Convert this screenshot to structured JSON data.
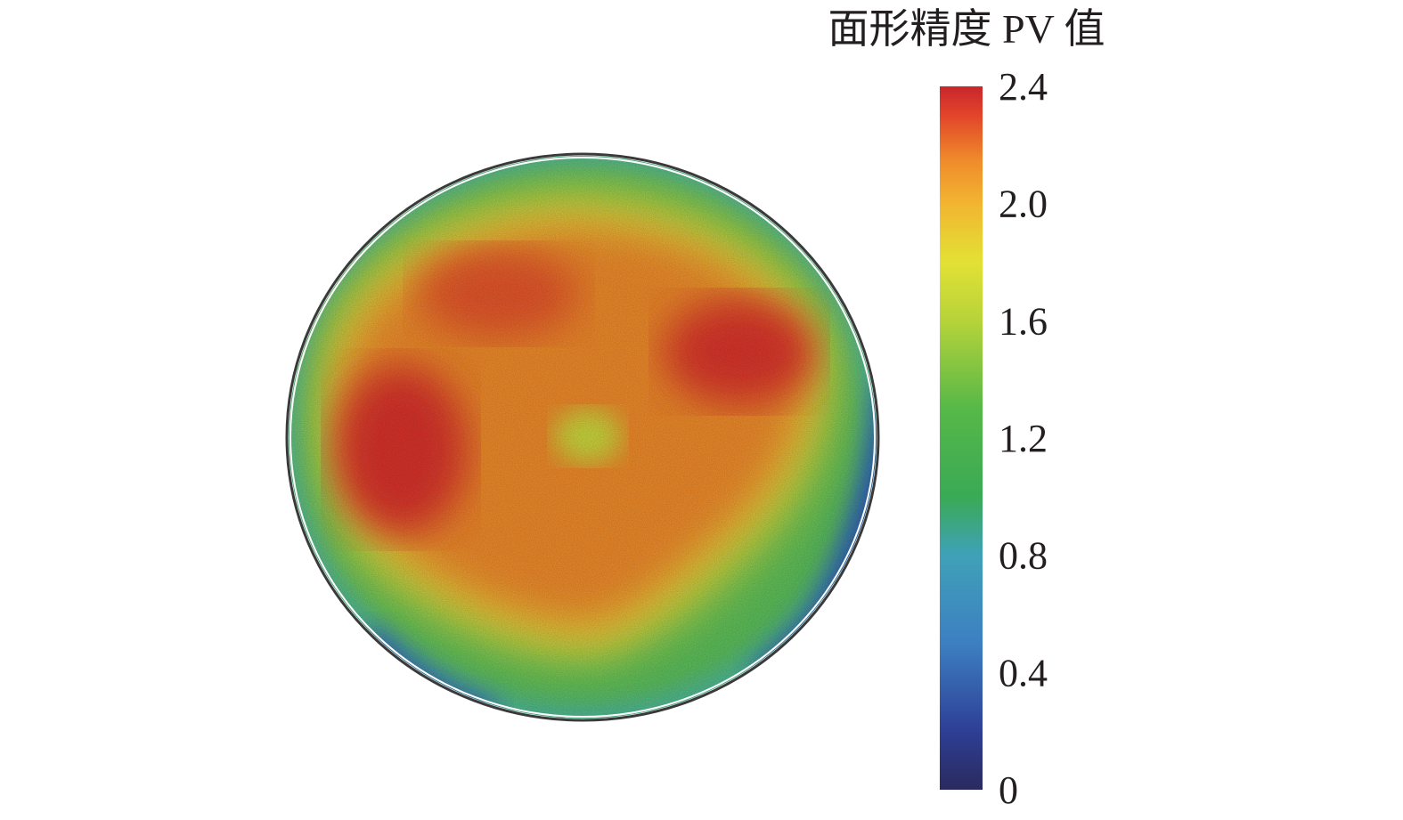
{
  "chart_data": {
    "type": "heatmap",
    "title": "",
    "colorbar": {
      "label": "面形精度 PV 值",
      "min": 0,
      "max": 2.4,
      "ticks": [
        "2.4",
        "2.0",
        "1.6",
        "1.2",
        "0.8",
        "0.4",
        "0"
      ],
      "tick_values": [
        2.4,
        2.0,
        1.6,
        1.2,
        0.8,
        0.4,
        0
      ],
      "colormap": [
        {
          "value": 0.0,
          "color": "#2a2a5e"
        },
        {
          "value": 0.2,
          "color": "#2e3f95"
        },
        {
          "value": 0.5,
          "color": "#3d7fc2"
        },
        {
          "value": 0.8,
          "color": "#3fa1b8"
        },
        {
          "value": 1.0,
          "color": "#3aaa55"
        },
        {
          "value": 1.3,
          "color": "#56b848"
        },
        {
          "value": 1.6,
          "color": "#b6d33a"
        },
        {
          "value": 1.8,
          "color": "#e3e135"
        },
        {
          "value": 2.0,
          "color": "#f2b531"
        },
        {
          "value": 2.15,
          "color": "#ef8a2b"
        },
        {
          "value": 2.3,
          "color": "#e2452a"
        },
        {
          "value": 2.4,
          "color": "#c8262d"
        }
      ]
    },
    "field": {
      "shape": "circular aperture",
      "description_level_regions": [
        {
          "region": "left-center",
          "value": 2.35
        },
        {
          "region": "upper-right",
          "value": 2.3
        },
        {
          "region": "center",
          "value": 1.75
        },
        {
          "region": "interior",
          "value": 2.15
        },
        {
          "region": "outer rim",
          "value": 1.1
        },
        {
          "region": "lower-right edge",
          "value": 0.3
        },
        {
          "region": "bottom-left edge",
          "value": 0.5
        }
      ]
    }
  }
}
